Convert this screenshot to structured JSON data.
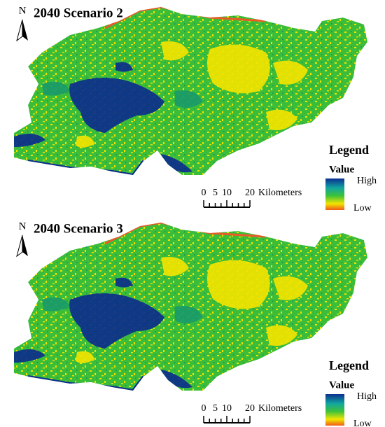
{
  "panels": [
    {
      "title": "2040 Scenario 2",
      "north": "N",
      "legend": {
        "title": "Legend",
        "subtitle": "Value",
        "high": "High",
        "low": "Low"
      },
      "scale": {
        "ticks": [
          0,
          5,
          10,
          20
        ],
        "unit": "Kilometers"
      }
    },
    {
      "title": "2040 Scenario 3",
      "north": "N",
      "legend": {
        "title": "Legend",
        "subtitle": "Value",
        "high": "High",
        "low": "Low"
      },
      "scale": {
        "ticks": [
          0,
          5,
          10,
          20
        ],
        "unit": "Kilometers"
      }
    }
  ]
}
